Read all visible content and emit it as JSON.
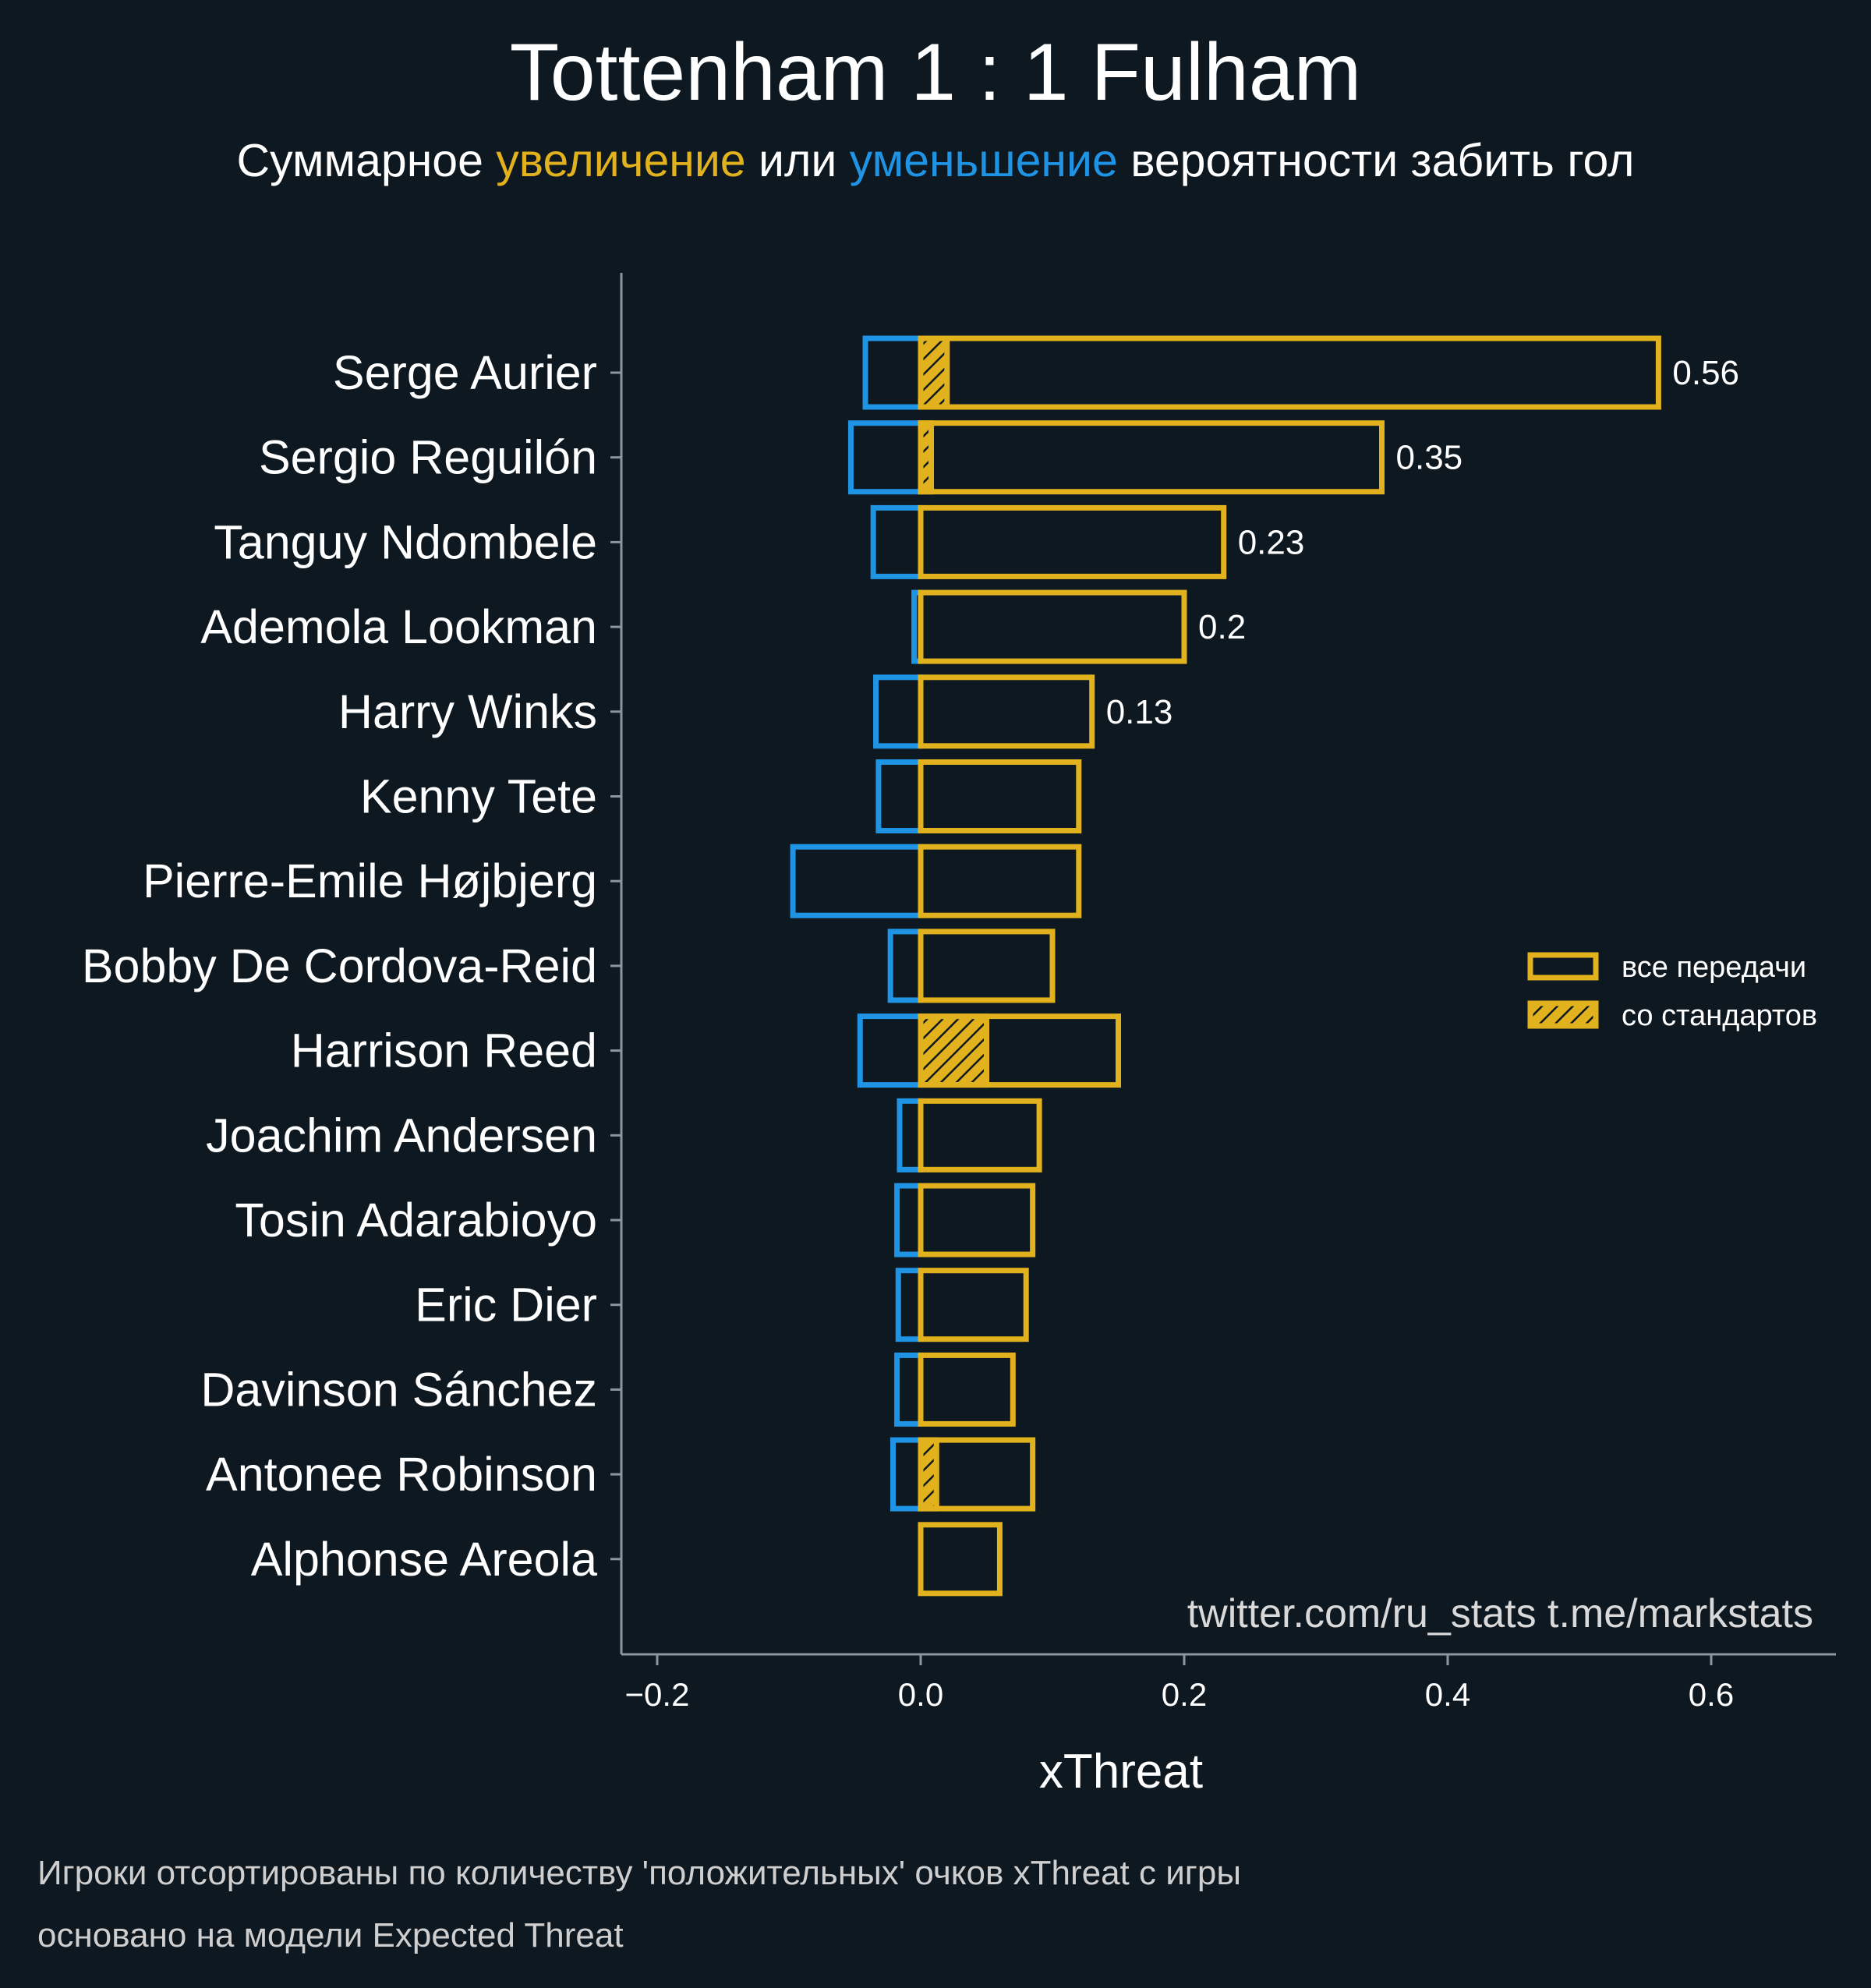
{
  "header": {
    "title": "Tottenham 1 : 1 Fulham",
    "subtitle_parts": {
      "prefix": "Суммарное ",
      "increase": "увеличение",
      "middle": " или ",
      "decrease": "уменьшение",
      "suffix": " вероятности забить гол"
    }
  },
  "colors": {
    "background": "#0e1821",
    "positive": "#e2b21e",
    "negative": "#2094e4",
    "axis": "#8a979f"
  },
  "legend": {
    "all_passes": "все передачи",
    "set_pieces": "со стандартов"
  },
  "watermark": "twitter.com/ru_stats  t.me/markstats",
  "footnote": {
    "line1": "Игроки отсортированы по количеству 'положительных' очков xThreat с игры",
    "line2": "основано на модели Expected Threat"
  },
  "chart_data": {
    "type": "bar",
    "orientation": "horizontal",
    "xlabel": "xThreat",
    "xlim": [
      -0.23,
      0.69
    ],
    "xticks": [
      -0.2,
      0.0,
      0.2,
      0.4,
      0.6
    ],
    "xtick_labels": [
      "−0.2",
      "0.0",
      "0.2",
      "0.4",
      "0.6"
    ],
    "legend_position": "right",
    "grid": false,
    "categories": [
      "Serge Aurier",
      "Sergio Reguilón",
      "Tanguy Ndombele",
      "Ademola Lookman",
      "Harry Winks",
      "Kenny Tete",
      "Pierre-Emile Højbjerg",
      "Bobby De Cordova-Reid",
      "Harrison Reed",
      "Joachim Andersen",
      "Tosin Adarabioyo",
      "Eric Dier",
      "Davinson Sánchez",
      "Antonee Robinson",
      "Alphonse Areola"
    ],
    "series": [
      {
        "name": "все передачи",
        "values": [
          0.56,
          0.35,
          0.23,
          0.2,
          0.13,
          0.12,
          0.12,
          0.1,
          0.15,
          0.09,
          0.085,
          0.08,
          0.07,
          0.085,
          0.06
        ]
      },
      {
        "name": "со стандартов",
        "values": [
          0.02,
          0.008,
          0,
          0,
          0,
          0,
          0,
          0,
          0.05,
          0,
          0,
          0,
          0,
          0.012,
          0
        ]
      },
      {
        "name": "уменьшение",
        "values": [
          -0.042,
          -0.053,
          -0.036,
          -0.005,
          -0.034,
          -0.032,
          -0.097,
          -0.023,
          -0.046,
          -0.016,
          -0.018,
          -0.017,
          -0.018,
          -0.021,
          0
        ]
      }
    ],
    "value_labels": [
      "0.56",
      "0.35",
      "0.23",
      "0.2",
      "0.13",
      "",
      "",
      "",
      "",
      "",
      "",
      "",
      "",
      "",
      ""
    ]
  }
}
